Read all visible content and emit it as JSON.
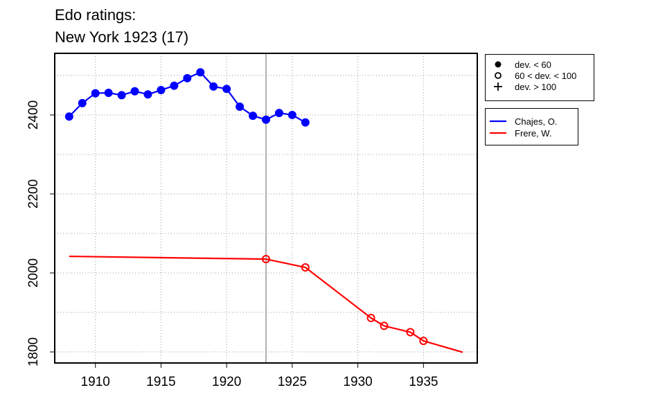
{
  "chart_data": {
    "type": "line",
    "title": "Edo ratings:",
    "subtitle": "New York 1923 (17)",
    "xlabel": "",
    "ylabel": "",
    "xlim": [
      1906.9,
      1939.1
    ],
    "ylim": [
      1772,
      2556
    ],
    "x_ticks": [
      1910,
      1915,
      1920,
      1925,
      1930,
      1935
    ],
    "y_ticks": [
      1800,
      2000,
      2200,
      2400
    ],
    "grid": true,
    "reference_line_x": 1923,
    "series": [
      {
        "name": "Chajes, O.",
        "color": "#0000ff",
        "marker": "filled-circle",
        "x": [
          1908,
          1909,
          1910,
          1911,
          1912,
          1913,
          1914,
          1915,
          1916,
          1917,
          1918,
          1919,
          1920,
          1921,
          1922,
          1923,
          1924,
          1925,
          1926
        ],
        "y": [
          2396,
          2430,
          2455,
          2456,
          2450,
          2460,
          2452,
          2463,
          2474,
          2493,
          2508,
          2472,
          2466,
          2421,
          2398,
          2388,
          2405,
          2400,
          2381
        ],
        "markers": [
          true,
          true,
          true,
          true,
          true,
          true,
          true,
          true,
          true,
          true,
          true,
          true,
          true,
          true,
          true,
          true,
          true,
          true,
          true
        ]
      },
      {
        "name": "Frere, W.",
        "color": "#ff0000",
        "marker": "open-circle",
        "x": [
          1908,
          1923,
          1926,
          1931,
          1932,
          1934,
          1935,
          1938
        ],
        "y": [
          2042,
          2035,
          2014,
          1886,
          1866,
          1850,
          1828,
          1799
        ],
        "markers": [
          false,
          true,
          true,
          true,
          true,
          true,
          true,
          false
        ]
      }
    ],
    "deviation_legend": [
      {
        "symbol": "filled-circle",
        "label": "dev. < 60"
      },
      {
        "symbol": "open-circle",
        "label": "60 < dev. < 100"
      },
      {
        "symbol": "plus",
        "label": "dev. > 100"
      }
    ],
    "legend_position": "right"
  }
}
